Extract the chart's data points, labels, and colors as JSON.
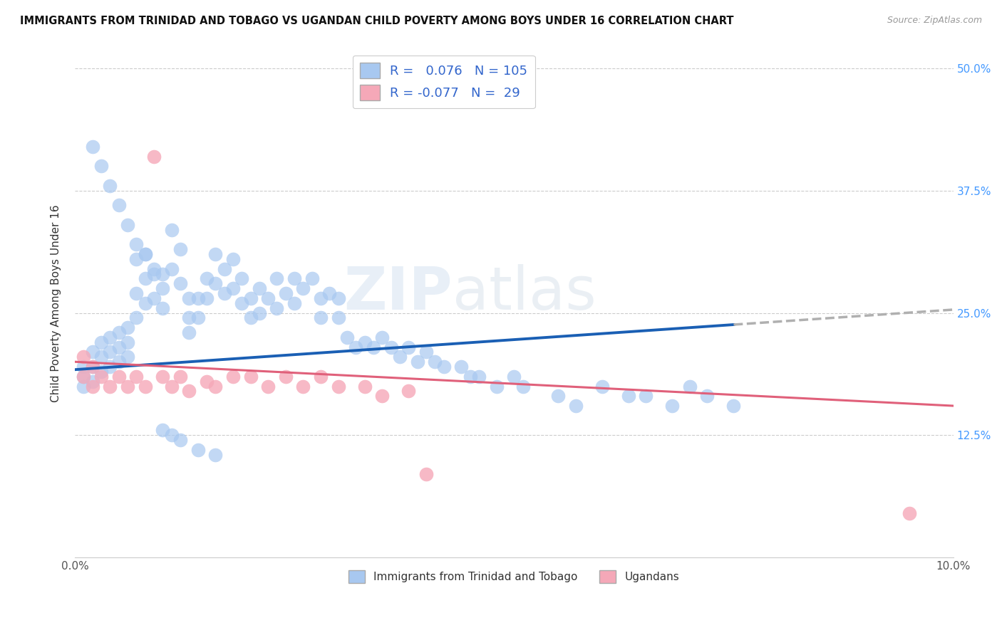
{
  "title": "IMMIGRANTS FROM TRINIDAD AND TOBAGO VS UGANDAN CHILD POVERTY AMONG BOYS UNDER 16 CORRELATION CHART",
  "source": "Source: ZipAtlas.com",
  "ylabel": "Child Poverty Among Boys Under 16",
  "xlim": [
    0.0,
    0.1
  ],
  "ylim": [
    0.0,
    0.52
  ],
  "blue_R": 0.076,
  "blue_N": 105,
  "pink_R": -0.077,
  "pink_N": 29,
  "blue_color": "#A8C8F0",
  "pink_color": "#F5A8B8",
  "blue_line_color": "#1A5FB4",
  "pink_line_color": "#E0607A",
  "trend_ext_color": "#B0B0B0",
  "watermark": "ZIPatlas",
  "legend_labels": [
    "Immigrants from Trinidad and Tobago",
    "Ugandans"
  ],
  "blue_line_x0": 0.0,
  "blue_line_y0": 0.192,
  "blue_line_x1": 0.075,
  "blue_line_y1": 0.238,
  "pink_line_x0": 0.0,
  "pink_line_y0": 0.2,
  "pink_line_x1": 0.1,
  "pink_line_y1": 0.155,
  "blue_scatter_x": [
    0.001,
    0.001,
    0.001,
    0.002,
    0.002,
    0.002,
    0.003,
    0.003,
    0.003,
    0.004,
    0.004,
    0.004,
    0.005,
    0.005,
    0.005,
    0.006,
    0.006,
    0.006,
    0.007,
    0.007,
    0.007,
    0.008,
    0.008,
    0.008,
    0.009,
    0.009,
    0.01,
    0.01,
    0.01,
    0.011,
    0.011,
    0.012,
    0.012,
    0.013,
    0.013,
    0.013,
    0.014,
    0.014,
    0.015,
    0.015,
    0.016,
    0.016,
    0.017,
    0.017,
    0.018,
    0.018,
    0.019,
    0.019,
    0.02,
    0.02,
    0.021,
    0.021,
    0.022,
    0.023,
    0.023,
    0.024,
    0.025,
    0.025,
    0.026,
    0.027,
    0.028,
    0.028,
    0.029,
    0.03,
    0.03,
    0.031,
    0.032,
    0.033,
    0.034,
    0.035,
    0.036,
    0.037,
    0.038,
    0.039,
    0.04,
    0.041,
    0.042,
    0.044,
    0.045,
    0.046,
    0.048,
    0.05,
    0.051,
    0.055,
    0.057,
    0.06,
    0.063,
    0.065,
    0.068,
    0.07,
    0.072,
    0.075,
    0.002,
    0.003,
    0.004,
    0.005,
    0.006,
    0.007,
    0.008,
    0.009,
    0.01,
    0.011,
    0.012,
    0.014,
    0.016
  ],
  "blue_scatter_y": [
    0.195,
    0.185,
    0.175,
    0.21,
    0.195,
    0.18,
    0.22,
    0.205,
    0.19,
    0.225,
    0.21,
    0.195,
    0.23,
    0.215,
    0.2,
    0.235,
    0.22,
    0.205,
    0.305,
    0.27,
    0.245,
    0.31,
    0.285,
    0.26,
    0.295,
    0.265,
    0.29,
    0.275,
    0.255,
    0.335,
    0.295,
    0.315,
    0.28,
    0.265,
    0.245,
    0.23,
    0.265,
    0.245,
    0.285,
    0.265,
    0.31,
    0.28,
    0.295,
    0.27,
    0.305,
    0.275,
    0.285,
    0.26,
    0.265,
    0.245,
    0.275,
    0.25,
    0.265,
    0.285,
    0.255,
    0.27,
    0.285,
    0.26,
    0.275,
    0.285,
    0.265,
    0.245,
    0.27,
    0.265,
    0.245,
    0.225,
    0.215,
    0.22,
    0.215,
    0.225,
    0.215,
    0.205,
    0.215,
    0.2,
    0.21,
    0.2,
    0.195,
    0.195,
    0.185,
    0.185,
    0.175,
    0.185,
    0.175,
    0.165,
    0.155,
    0.175,
    0.165,
    0.165,
    0.155,
    0.175,
    0.165,
    0.155,
    0.42,
    0.4,
    0.38,
    0.36,
    0.34,
    0.32,
    0.31,
    0.29,
    0.13,
    0.125,
    0.12,
    0.11,
    0.105
  ],
  "pink_scatter_x": [
    0.001,
    0.001,
    0.002,
    0.002,
    0.003,
    0.004,
    0.005,
    0.006,
    0.007,
    0.008,
    0.009,
    0.01,
    0.011,
    0.012,
    0.013,
    0.015,
    0.016,
    0.018,
    0.02,
    0.022,
    0.024,
    0.026,
    0.028,
    0.03,
    0.033,
    0.035,
    0.038,
    0.04,
    0.095
  ],
  "pink_scatter_y": [
    0.205,
    0.185,
    0.195,
    0.175,
    0.185,
    0.175,
    0.185,
    0.175,
    0.185,
    0.175,
    0.41,
    0.185,
    0.175,
    0.185,
    0.17,
    0.18,
    0.175,
    0.185,
    0.185,
    0.175,
    0.185,
    0.175,
    0.185,
    0.175,
    0.175,
    0.165,
    0.17,
    0.085,
    0.045
  ]
}
